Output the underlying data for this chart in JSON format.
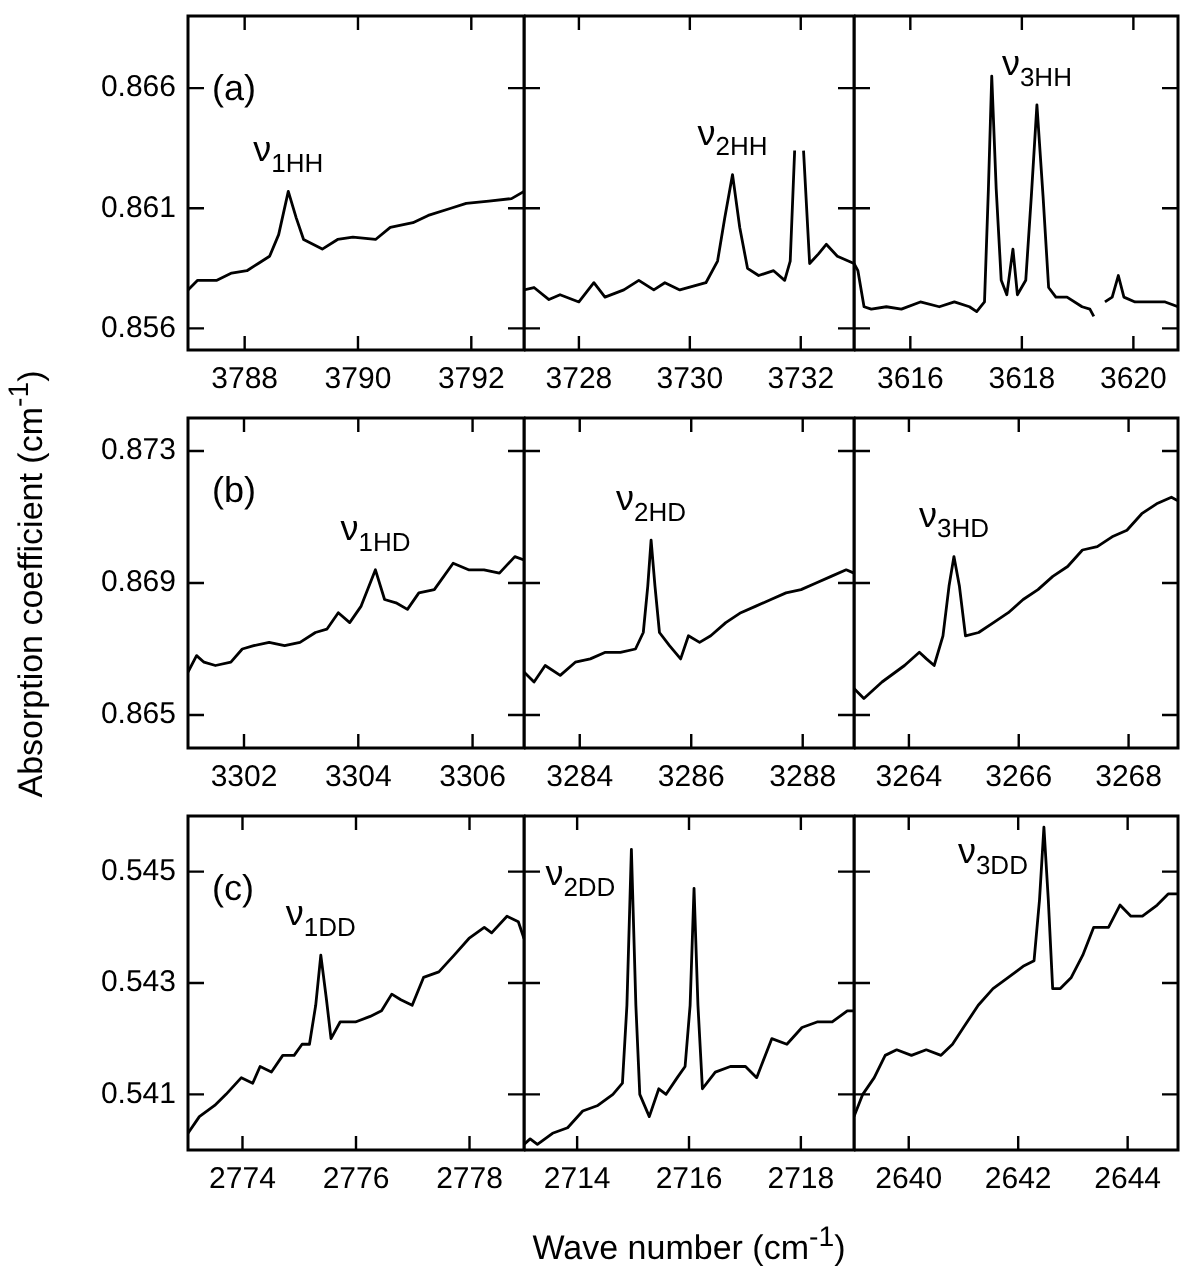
{
  "chart_data": [
    {
      "type": "line",
      "color": "#000000",
      "annotations": [
        "(a)",
        {
          "text": "ν$_{1HH}$",
          "x": 3788.77,
          "y": 0.8617
        }
      ],
      "xlim": [
        3787.0,
        3792.93
      ],
      "xticks": [
        3788,
        3790,
        3792
      ],
      "ylim": [
        0.8551,
        0.869
      ],
      "yticks": [
        0.856,
        0.861,
        0.866
      ],
      "x": [
        3787.0,
        3787.17,
        3787.51,
        3787.77,
        3788.04,
        3788.24,
        3788.44,
        3788.6,
        3788.77,
        3788.91,
        3789.04,
        3789.37,
        3789.64,
        3789.91,
        3790.31,
        3790.57,
        3790.97,
        3791.24,
        3791.64,
        3791.91,
        3792.31,
        3792.71,
        3792.93
      ],
      "values": [
        0.8576,
        0.858,
        0.858,
        0.8583,
        0.8584,
        0.8587,
        0.859,
        0.8599,
        0.8617,
        0.8606,
        0.8597,
        0.8593,
        0.8597,
        0.8598,
        0.8597,
        0.8602,
        0.8604,
        0.8607,
        0.861,
        0.8612,
        0.8613,
        0.8614,
        0.8617
      ]
    },
    {
      "type": "line",
      "color": "#000000",
      "tick_labels": "x",
      "annotations": [
        {
          "text": "ν$_{2HH}$",
          "x": 3730.77,
          "y": 0.8624
        }
      ],
      "xlim": [
        3727.01,
        3732.96
      ],
      "xticks": [
        3728,
        3730,
        3732
      ],
      "ylim": [
        0.8551,
        0.869
      ],
      "yticks": [
        0.856,
        0.861,
        0.866
      ],
      "x": [
        3727.01,
        3727.19,
        3727.46,
        3727.66,
        3728.0,
        3728.27,
        3728.47,
        3728.81,
        3729.08,
        3729.35,
        3729.55,
        3729.82,
        3730.29,
        3730.5,
        3730.63,
        3730.77,
        3730.9,
        3731.04,
        3731.24,
        3731.51,
        3731.71,
        3731.81,
        3731.89,
        3731.97,
        3732.05,
        3732.16,
        3732.32,
        3732.46,
        3732.66,
        3732.96
      ],
      "values": [
        0.8576,
        0.8577,
        0.8572,
        0.8574,
        0.8571,
        0.8579,
        0.8573,
        0.8576,
        0.858,
        0.8576,
        0.8579,
        0.8576,
        0.8579,
        0.8588,
        0.8606,
        0.8624,
        0.8602,
        0.8585,
        0.8582,
        0.8584,
        0.858,
        0.8588,
        0.8634,
        null,
        0.8634,
        0.8587,
        0.8591,
        0.8595,
        0.859,
        0.8587
      ]
    },
    {
      "type": "line",
      "color": "#000000",
      "tick_labels": "x",
      "annotations": [
        {
          "text": "ν$_{3HH}$",
          "x": 3618.27,
          "y": 0.8653
        }
      ],
      "xlim": [
        3614.99,
        3620.8
      ],
      "xticks": [
        3616,
        3618,
        3620
      ],
      "ylim": [
        0.8551,
        0.869
      ],
      "yticks": [
        0.856,
        0.861,
        0.866
      ],
      "x": [
        3614.99,
        3615.06,
        3615.17,
        3615.3,
        3615.57,
        3615.84,
        3616.18,
        3616.52,
        3616.79,
        3617.06,
        3617.19,
        3617.33,
        3617.4,
        3617.46,
        3617.54,
        3617.63,
        3617.73,
        3617.84,
        3617.92,
        3618.07,
        3618.17,
        3618.27,
        3618.38,
        3618.48,
        3618.61,
        3618.81,
        3619.08,
        3619.22,
        3619.29,
        3619.35,
        3619.44,
        3619.49,
        3619.62,
        3619.73,
        3619.83,
        3620.03,
        3620.3,
        3620.57,
        3620.8
      ],
      "values": [
        0.8587,
        0.8584,
        0.8569,
        0.8568,
        0.8569,
        0.8568,
        0.8571,
        0.8569,
        0.8571,
        0.8569,
        0.8567,
        0.8571,
        0.8618,
        0.8665,
        0.8618,
        0.858,
        0.8574,
        0.8593,
        0.8574,
        0.858,
        0.8615,
        0.8653,
        0.8615,
        0.8577,
        0.8573,
        0.8573,
        0.8569,
        0.8568,
        0.8565,
        null,
        null,
        0.8571,
        0.8573,
        0.8582,
        0.8573,
        0.8571,
        0.8571,
        0.8571,
        0.8569
      ]
    },
    {
      "type": "line",
      "color": "#000000",
      "ylabel": "Absorption coefficient (cm$^{-1}$)",
      "annotations": [
        "(b)",
        {
          "text": "ν$_{1HD}$",
          "x": 3304.3,
          "y": 0.8694
        }
      ],
      "xlim": [
        3301.02,
        3306.9
      ],
      "xticks": [
        3302,
        3304,
        3306
      ],
      "ylim": [
        0.864,
        0.874
      ],
      "yticks": [
        0.865,
        0.869,
        0.873
      ],
      "x": [
        3301.02,
        3301.17,
        3301.3,
        3301.5,
        3301.77,
        3301.97,
        3302.17,
        3302.44,
        3302.71,
        3302.98,
        3303.25,
        3303.45,
        3303.65,
        3303.85,
        3304.05,
        3304.3,
        3304.46,
        3304.66,
        3304.86,
        3305.06,
        3305.33,
        3305.66,
        3305.93,
        3306.2,
        3306.47,
        3306.74,
        3306.9
      ],
      "values": [
        0.8663,
        0.8668,
        0.8666,
        0.8665,
        0.8666,
        0.867,
        0.8671,
        0.8672,
        0.8671,
        0.8672,
        0.8675,
        0.8676,
        0.8681,
        0.8678,
        0.8683,
        0.8694,
        0.8685,
        0.8684,
        0.8682,
        0.8687,
        0.8688,
        0.8696,
        0.8694,
        0.8694,
        0.8693,
        0.8698,
        0.8697
      ]
    },
    {
      "type": "line",
      "color": "#000000",
      "tick_labels": "x",
      "annotations": [
        {
          "text": "ν$_{2HD}$",
          "x": 3285.28,
          "y": 0.8703
        }
      ],
      "xlim": [
        3283.0,
        3288.92
      ],
      "xticks": [
        3284,
        3286,
        3288
      ],
      "ylim": [
        0.864,
        0.874
      ],
      "yticks": [
        0.865,
        0.869,
        0.873
      ],
      "x": [
        3283.0,
        3283.18,
        3283.38,
        3283.65,
        3283.92,
        3284.19,
        3284.46,
        3284.73,
        3285.0,
        3285.14,
        3285.22,
        3285.28,
        3285.35,
        3285.43,
        3285.61,
        3285.81,
        3285.95,
        3286.15,
        3286.35,
        3286.62,
        3286.89,
        3287.16,
        3287.43,
        3287.7,
        3287.97,
        3288.24,
        3288.51,
        3288.78,
        3288.92
      ],
      "values": [
        0.8663,
        0.866,
        0.8665,
        0.8662,
        0.8666,
        0.8667,
        0.8669,
        0.8669,
        0.867,
        0.8675,
        0.8689,
        0.8703,
        0.8689,
        0.8675,
        0.8671,
        0.8667,
        0.8674,
        0.8672,
        0.8674,
        0.8678,
        0.8681,
        0.8683,
        0.8685,
        0.8687,
        0.8688,
        0.869,
        0.8692,
        0.8694,
        0.8693
      ]
    },
    {
      "type": "line",
      "color": "#000000",
      "tick_labels": "x",
      "annotations": [
        {
          "text": "ν$_{3HD}$",
          "x": 3264.82,
          "y": 0.8698
        }
      ],
      "xlim": [
        3263.0,
        3268.9
      ],
      "xticks": [
        3264,
        3266,
        3268
      ],
      "ylim": [
        0.864,
        0.874
      ],
      "yticks": [
        0.865,
        0.869,
        0.873
      ],
      "x": [
        3263.0,
        3263.18,
        3263.51,
        3263.92,
        3264.19,
        3264.32,
        3264.46,
        3264.62,
        3264.73,
        3264.82,
        3264.92,
        3265.03,
        3265.27,
        3265.54,
        3265.81,
        3266.08,
        3266.35,
        3266.62,
        3266.89,
        3267.16,
        3267.43,
        3267.7,
        3267.97,
        3268.24,
        3268.51,
        3268.78,
        3268.89
      ],
      "values": [
        0.8658,
        0.8655,
        0.866,
        0.8665,
        0.8669,
        0.8667,
        0.8665,
        0.8674,
        0.8689,
        0.8698,
        0.8689,
        0.8674,
        0.8675,
        0.8678,
        0.8681,
        0.8685,
        0.8688,
        0.8692,
        0.8695,
        0.87,
        0.8701,
        0.8704,
        0.8706,
        0.8711,
        0.8714,
        0.8716,
        0.8715
      ]
    },
    {
      "type": "line",
      "color": "#000000",
      "annotations": [
        "(c)",
        {
          "text": "ν$_{1DD}$",
          "x": 2775.38,
          "y": 0.5435
        }
      ],
      "xlim": [
        2773.04,
        2778.96
      ],
      "xticks": [
        2774,
        2776,
        2778
      ],
      "ylim": [
        0.54,
        0.546
      ],
      "yticks": [
        0.541,
        0.543,
        0.545
      ],
      "x": [
        2773.04,
        2773.24,
        2773.51,
        2773.71,
        2773.98,
        2774.18,
        2774.31,
        2774.51,
        2774.71,
        2774.91,
        2775.05,
        2775.18,
        2775.29,
        2775.38,
        2775.48,
        2775.56,
        2775.72,
        2775.99,
        2776.25,
        2776.45,
        2776.63,
        2776.79,
        2776.99,
        2777.19,
        2777.46,
        2777.73,
        2777.99,
        2778.26,
        2778.39,
        2778.66,
        2778.86,
        2778.96
      ],
      "values": [
        0.5403,
        0.5406,
        0.5408,
        0.541,
        0.5413,
        0.5412,
        0.5415,
        0.5414,
        0.5417,
        0.5417,
        0.5419,
        0.5419,
        0.5426,
        0.5435,
        0.5427,
        0.542,
        0.5423,
        0.5423,
        0.5424,
        0.5425,
        0.5428,
        0.5427,
        0.5426,
        0.5431,
        0.5432,
        0.5435,
        0.5438,
        0.544,
        0.5439,
        0.5442,
        0.5441,
        0.5438
      ]
    },
    {
      "type": "line",
      "color": "#000000",
      "tick_labels": "x",
      "xlabel": "Wave number (cm$^{-1}$)",
      "annotations": [
        {
          "text": "ν$_{2DD}$",
          "x": 2714.97,
          "y": 0.5454
        }
      ],
      "xlim": [
        2713.05,
        2718.95
      ],
      "xticks": [
        2714,
        2716,
        2718
      ],
      "ylim": [
        0.54,
        0.546
      ],
      "yticks": [
        0.541,
        0.543,
        0.545
      ],
      "x": [
        2713.05,
        2713.16,
        2713.29,
        2713.56,
        2713.83,
        2714.1,
        2714.37,
        2714.64,
        2714.81,
        2714.89,
        2714.97,
        2715.05,
        2715.12,
        2715.29,
        2715.46,
        2715.59,
        2715.79,
        2715.93,
        2716.02,
        2716.09,
        2716.16,
        2716.24,
        2716.47,
        2716.74,
        2717.01,
        2717.21,
        2717.48,
        2717.75,
        2718.02,
        2718.29,
        2718.56,
        2718.83,
        2718.95
      ],
      "values": [
        0.5401,
        0.5402,
        0.5401,
        0.5403,
        0.5404,
        0.5407,
        0.5408,
        0.541,
        0.5412,
        0.5426,
        0.5454,
        0.5426,
        0.541,
        0.5406,
        0.5411,
        0.541,
        0.5413,
        0.5415,
        0.5426,
        0.5447,
        0.5426,
        0.5411,
        0.5414,
        0.5415,
        0.5415,
        0.5413,
        0.542,
        0.5419,
        0.5422,
        0.5423,
        0.5423,
        0.5425,
        0.5425
      ]
    },
    {
      "type": "line",
      "color": "#000000",
      "tick_labels": "x",
      "annotations": [
        {
          "text": "ν$_{3DD}$",
          "x": 2642.47,
          "y": 0.5458
        }
      ],
      "xlim": [
        2639.0,
        2644.92
      ],
      "xticks": [
        2640,
        2642,
        2644
      ],
      "ylim": [
        0.54,
        0.546
      ],
      "yticks": [
        0.541,
        0.543,
        0.545
      ],
      "x": [
        2639.0,
        2639.16,
        2639.37,
        2639.57,
        2639.78,
        2640.05,
        2640.32,
        2640.59,
        2640.8,
        2641.0,
        2641.27,
        2641.54,
        2641.82,
        2642.09,
        2642.29,
        2642.39,
        2642.47,
        2642.55,
        2642.63,
        2642.77,
        2642.97,
        2643.18,
        2643.38,
        2643.65,
        2643.86,
        2644.06,
        2644.27,
        2644.54,
        2644.74,
        2644.92
      ],
      "values": [
        0.5406,
        0.541,
        0.5413,
        0.5417,
        0.5418,
        0.5417,
        0.5418,
        0.5417,
        0.5419,
        0.5422,
        0.5426,
        0.5429,
        0.5431,
        0.5433,
        0.5434,
        0.5445,
        0.5458,
        0.5445,
        0.5429,
        0.5429,
        0.5431,
        0.5435,
        0.544,
        0.544,
        0.5444,
        0.5442,
        0.5442,
        0.5444,
        0.5446,
        0.5446
      ]
    }
  ]
}
